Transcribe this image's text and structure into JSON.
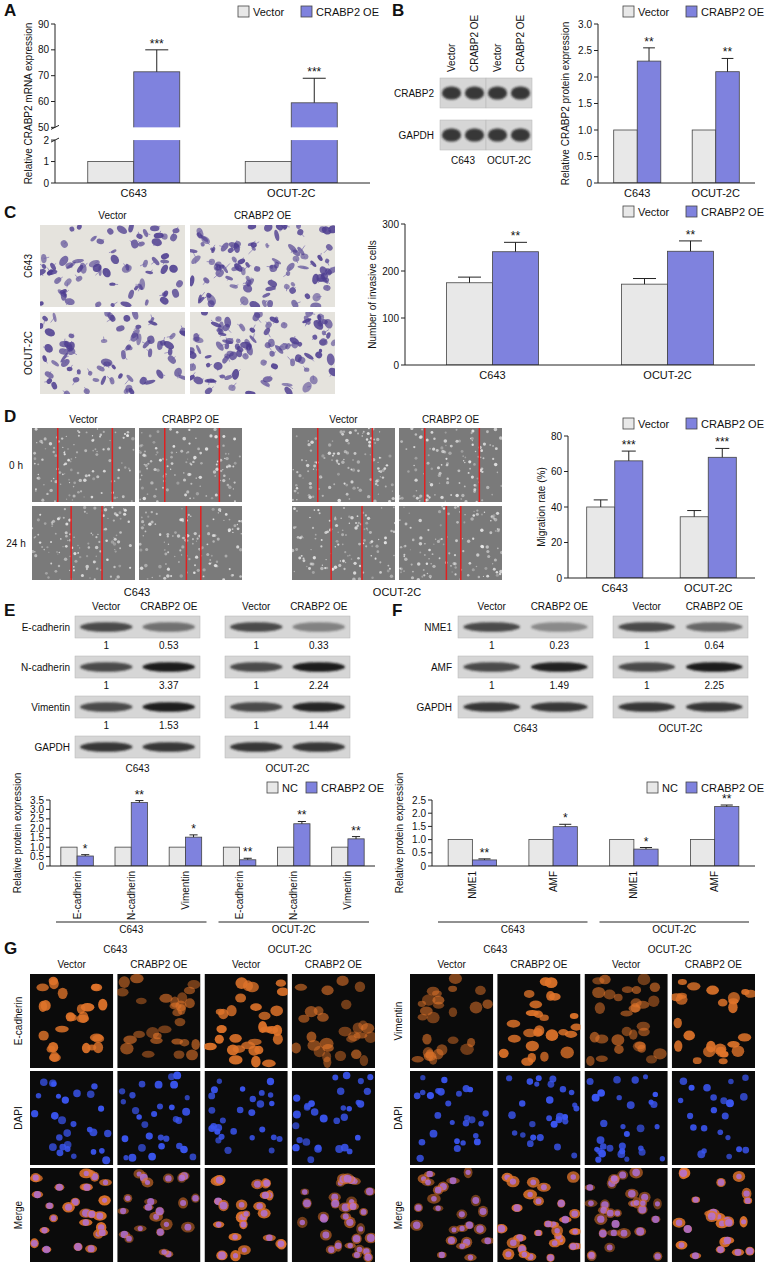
{
  "chart_data": [
    {
      "panel": "A",
      "type": "bar",
      "y_label": "Relative CRABP2 mRNA expression",
      "categories": [
        "C643",
        "OCUT-2C"
      ],
      "series": [
        {
          "name": "Vector",
          "color": "#e8e8e8",
          "values": [
            1,
            1
          ]
        },
        {
          "name": "CRABP2 OE",
          "color": "#7f82de",
          "values": [
            71.5,
            59.5
          ],
          "errors": [
            8.5,
            9.5
          ],
          "annotations": [
            "***",
            "***"
          ]
        }
      ],
      "ylim": [
        0,
        90
      ],
      "yticks": [
        0,
        1,
        2,
        50,
        60,
        70,
        80,
        90
      ],
      "y_break": [
        2,
        50
      ],
      "legend": "top-right"
    },
    {
      "panel": "B",
      "type": "bar",
      "y_label": "Relative CRABP2 protein expression",
      "categories": [
        "C643",
        "OCUT-2C"
      ],
      "series": [
        {
          "name": "Vector",
          "color": "#e8e8e8",
          "values": [
            1,
            1
          ]
        },
        {
          "name": "CRABP2 OE",
          "color": "#7f82de",
          "values": [
            2.3,
            2.1
          ],
          "errors": [
            0.25,
            0.25
          ],
          "annotations": [
            "**",
            "**"
          ]
        }
      ],
      "ylim": [
        0,
        3
      ],
      "yticks": [
        0,
        0.5,
        {
          "value": 1,
          "label": "1.0"
        },
        1.5,
        {
          "value": 2,
          "label": "2.0"
        },
        2.5,
        {
          "value": 3,
          "label": "3.0"
        }
      ],
      "legend": "top-right"
    },
    {
      "panel": "C",
      "type": "bar",
      "y_label": "Number of invasive cells",
      "categories": [
        "C643",
        "OCUT-2C"
      ],
      "series": [
        {
          "name": "Vector",
          "color": "#e8e8e8",
          "values": [
            175,
            172
          ],
          "errors": [
            12,
            12
          ]
        },
        {
          "name": "CRABP2 OE",
          "color": "#7f82de",
          "values": [
            241,
            242
          ],
          "errors": [
            20,
            22
          ],
          "annotations": [
            "**",
            "**"
          ]
        }
      ],
      "ylim": [
        0,
        300
      ],
      "yticks": [
        0,
        100,
        200,
        300
      ],
      "legend": "top-right"
    },
    {
      "panel": "D",
      "type": "bar",
      "y_label": "Migration rate (%)",
      "categories": [
        "C643",
        "OCUT-2C"
      ],
      "series": [
        {
          "name": "Vector",
          "color": "#e8e8e8",
          "values": [
            40,
            34.5
          ],
          "errors": [
            4,
            3.5
          ]
        },
        {
          "name": "CRABP2 OE",
          "color": "#7f82de",
          "values": [
            66,
            68
          ],
          "errors": [
            5.5,
            5
          ],
          "annotations": [
            "***",
            "***"
          ]
        }
      ],
      "ylim": [
        0,
        80
      ],
      "yticks": [
        0,
        20,
        40,
        60,
        80
      ],
      "legend": "top-right"
    },
    {
      "panel": "E",
      "type": "bar",
      "y_label": "Relative protein expression",
      "categories": [
        "E-cadherin",
        "N-cadherin",
        "Vimentin",
        "E-cadherin",
        "N-cadherin",
        "Vimentin"
      ],
      "group_labels": [
        "C643",
        "OCUT-2C"
      ],
      "series": [
        {
          "name": "NC",
          "color": "#e8e8e8",
          "values": [
            1,
            1,
            1,
            1,
            1,
            1
          ]
        },
        {
          "name": "CRABP2 OE",
          "color": "#7f82de",
          "values": [
            0.53,
            3.37,
            1.53,
            0.33,
            2.24,
            1.44
          ],
          "errors": [
            0.07,
            0.1,
            0.12,
            0.08,
            0.12,
            0.12
          ],
          "annotations": [
            "*",
            "**",
            "*",
            "**",
            "**",
            "**"
          ]
        }
      ],
      "ylim": [
        0,
        3.5
      ],
      "yticks": [
        0,
        0.5,
        {
          "value": 1,
          "label": "1.0"
        },
        1.5,
        {
          "value": 2,
          "label": "2.0"
        },
        2.5,
        {
          "value": 3,
          "label": "3.0"
        },
        3.5
      ],
      "legend": "top-right"
    },
    {
      "panel": "F",
      "type": "bar",
      "y_label": "Relative protein expression",
      "categories": [
        "NME1",
        "AMF",
        "NME1",
        "AMF"
      ],
      "group_labels": [
        "C643",
        "OCUT-2C"
      ],
      "series": [
        {
          "name": "NC",
          "color": "#e8e8e8",
          "values": [
            1,
            1,
            1,
            1
          ]
        },
        {
          "name": "CRABP2 OE",
          "color": "#7f82de",
          "values": [
            0.23,
            1.49,
            0.64,
            2.25
          ],
          "errors": [
            0.04,
            0.09,
            0.06,
            0.06
          ],
          "annotations": [
            "**",
            "*",
            "*",
            "**"
          ]
        }
      ],
      "ylim": [
        0,
        2.5
      ],
      "yticks": [
        0,
        0.5,
        {
          "value": 1,
          "label": "1.0"
        },
        1.5,
        {
          "value": 2,
          "label": "2.0"
        },
        2.5
      ],
      "legend": "top-right"
    }
  ],
  "blots": [
    {
      "cells": [
        {
          "name": "C643",
          "lanes": [
            "Vector",
            "CRABP2 OE"
          ]
        },
        {
          "name": "OCUT-2C",
          "lanes": [
            "Vector",
            "CRABP2 OE"
          ]
        }
      ],
      "rows": [
        {
          "name": "CRABP2"
        },
        {
          "name": "GAPDH"
        }
      ]
    },
    {
      "cells": [
        {
          "name": "C643",
          "lanes": [
            "Vector",
            "CRABP2 OE"
          ]
        },
        {
          "name": "OCUT-2C",
          "lanes": [
            "Vector",
            "CRABP2 OE"
          ]
        }
      ],
      "rows": [
        {
          "name": "E-cadherin",
          "ratios": [
            [
              1,
              0.53
            ],
            [
              1,
              0.33
            ]
          ]
        },
        {
          "name": "N-cadherin",
          "ratios": [
            [
              1,
              3.37
            ],
            [
              1,
              2.24
            ]
          ]
        },
        {
          "name": "Vimentin",
          "ratios": [
            [
              1,
              1.53
            ],
            [
              1,
              1.44
            ]
          ]
        },
        {
          "name": "GAPDH"
        }
      ]
    },
    {
      "cells": [
        {
          "name": "C643",
          "lanes": [
            "Vector",
            "CRABP2 OE"
          ]
        },
        {
          "name": "OCUT-2C",
          "lanes": [
            "Vector",
            "CRABP2 OE"
          ]
        }
      ],
      "rows": [
        {
          "name": "NME1",
          "ratios": [
            [
              1,
              0.23
            ],
            [
              1,
              0.64
            ]
          ]
        },
        {
          "name": "AMF",
          "ratios": [
            [
              1,
              1.49
            ],
            [
              1,
              2.25
            ]
          ]
        },
        {
          "name": "GAPDH"
        }
      ]
    }
  ],
  "images": [
    {
      "columns": [
        "Vector",
        "CRABP2 OE"
      ],
      "rows": [
        "C643",
        "OCUT-2C"
      ]
    },
    {
      "groups": [
        {
          "name": "C643",
          "columns": [
            "Vector",
            "CRABP2 OE"
          ]
        },
        {
          "name": "OCUT-2C",
          "columns": [
            "Vector",
            "CRABP2 OE"
          ]
        }
      ],
      "rows": [
        "0 h",
        "24 h"
      ]
    },
    {
      "panel": "G",
      "blocks": [
        {
          "rows": [
            "E-cadherin",
            "DAPI",
            "Merge"
          ],
          "groups": [
            {
              "name": "C643",
              "columns": [
                "Vector",
                "CRABP2 OE"
              ]
            },
            {
              "name": "OCUT-2C",
              "columns": [
                "Vector",
                "CRABP2 OE"
              ]
            }
          ]
        },
        {
          "rows": [
            "Vimentin",
            "DAPI",
            "Merge"
          ],
          "groups": [
            {
              "name": "C643",
              "columns": [
                "Vector",
                "CRABP2 OE"
              ]
            },
            {
              "name": "OCUT-2C",
              "columns": [
                "Vector",
                "CRABP2 OE"
              ]
            }
          ]
        }
      ]
    }
  ]
}
